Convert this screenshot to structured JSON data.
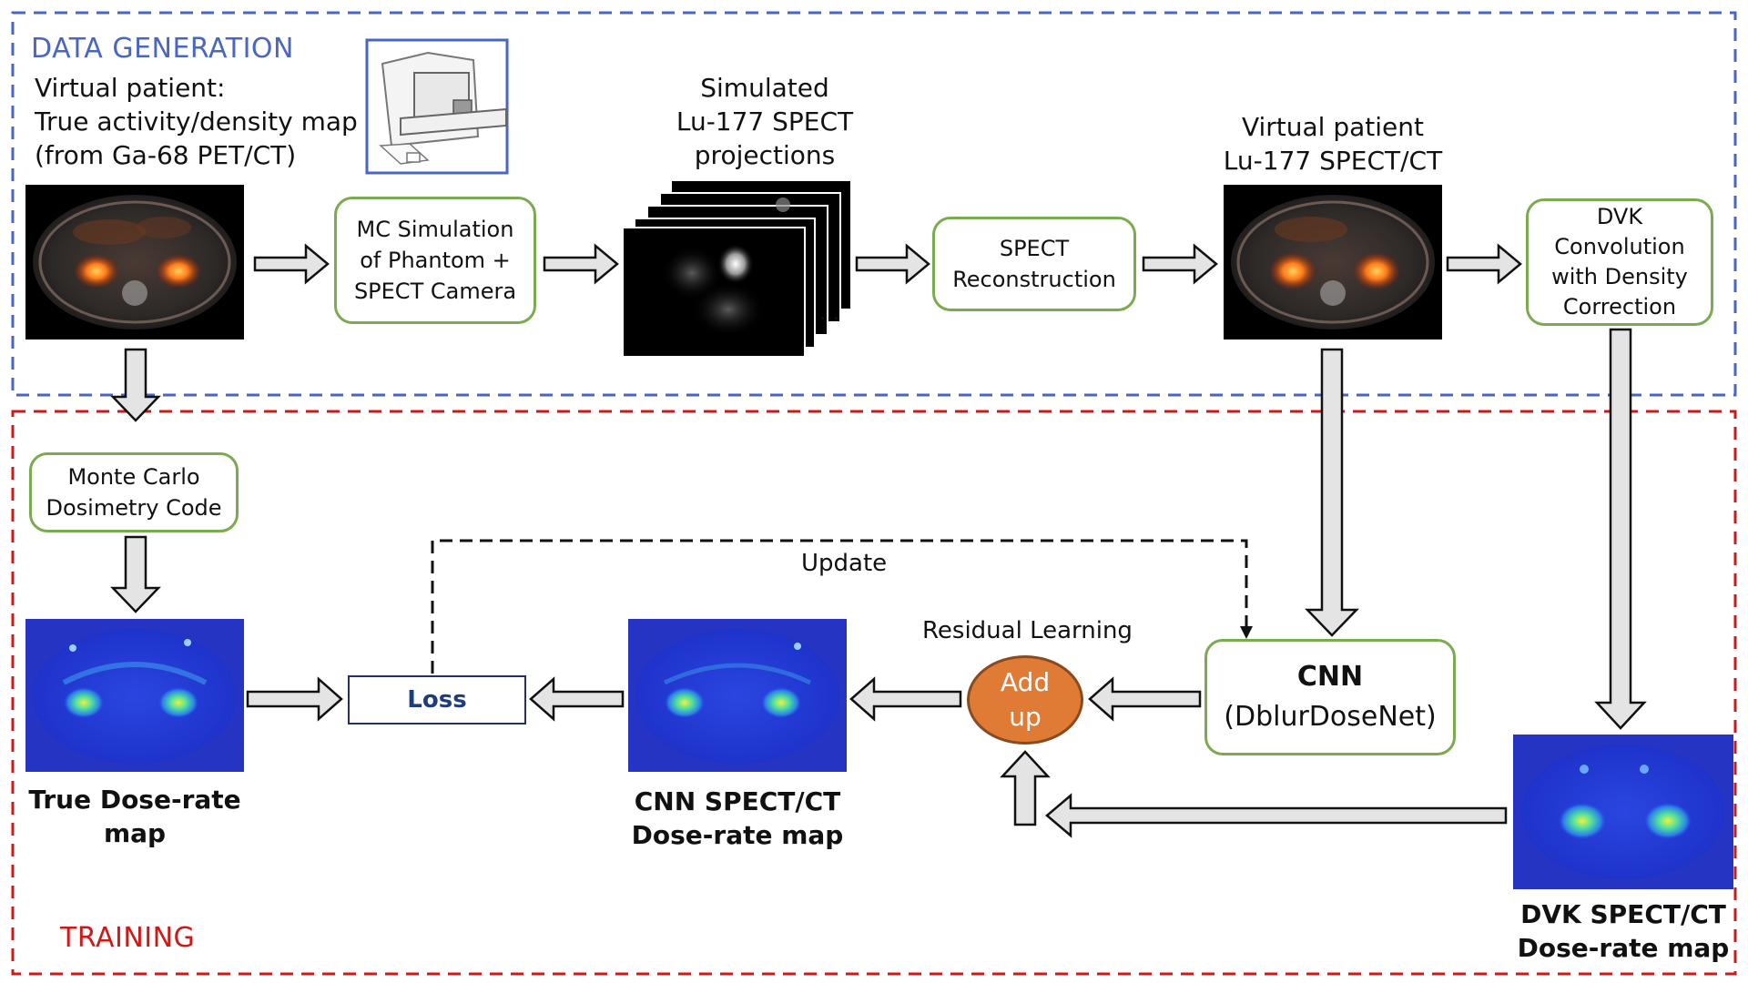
{
  "data_generation": {
    "title": "DATA GENERATION",
    "virtual_patient_label": [
      "Virtual patient:",
      "True activity/density map",
      "(from Ga-68 PET/CT)"
    ],
    "mc_simulation": [
      "MC Simulation",
      "of Phantom +",
      "SPECT Camera"
    ],
    "simulated_label": [
      "Simulated",
      "Lu-177 SPECT",
      "projections"
    ],
    "spect_recon": [
      "SPECT",
      "Reconstruction"
    ],
    "virtual_spect_label": [
      "Virtual patient",
      "Lu-177 SPECT/CT"
    ],
    "dvk_convolution": [
      "DVK",
      "Convolution",
      "with Density",
      "Correction"
    ],
    "ellipsis": "…"
  },
  "training": {
    "title": "TRAINING",
    "monte_carlo": [
      "Monte Carlo",
      "Dosimetry Code"
    ],
    "true_dose_label": [
      "True Dose-rate",
      "map"
    ],
    "loss": "Loss",
    "update": "Update",
    "cnn_dose_label": [
      "CNN SPECT/CT",
      "Dose-rate map"
    ],
    "residual_learning": "Residual Learning",
    "add_up": [
      "Add",
      "up"
    ],
    "cnn_title": "CNN",
    "cnn_subtitle": "(DblurDoseNet)",
    "dvk_dose_label": [
      "DVK SPECT/CT",
      "Dose-rate map"
    ]
  },
  "colors": {
    "data_generation_border": "#4a66c4",
    "training_border": "#d01818",
    "box_border": "#7aab4f",
    "add_up_fill": "#e07b36"
  }
}
